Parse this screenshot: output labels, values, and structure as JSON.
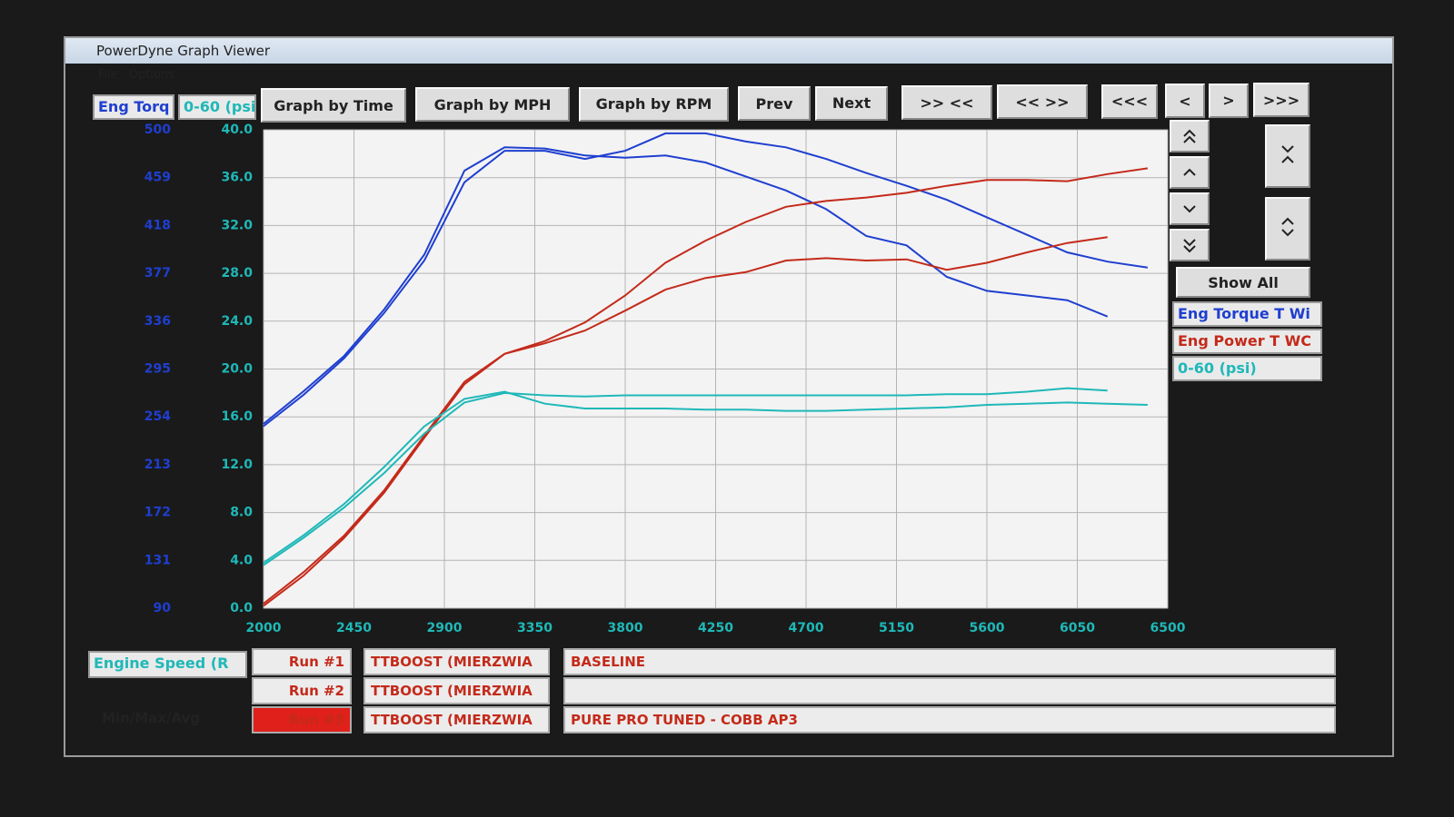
{
  "window": {
    "title": "PowerDyne Graph Viewer",
    "menu": [
      "File",
      "Options"
    ]
  },
  "toolbar": [
    "Graph by Time",
    "Graph by MPH",
    "Graph by RPM",
    "Prev",
    "Next",
    ">> <<",
    "<< >>",
    "<<<",
    "<",
    ">",
    ">>>"
  ],
  "show_all": "Show All",
  "chart_data": {
    "type": "line",
    "y_label": "Eng Torq",
    "y2_label": "0-60 (psi)",
    "x_label": "Engine Speed (R",
    "x": [
      2000,
      2200,
      2400,
      2600,
      2800,
      3000,
      3200,
      3400,
      3600,
      3800,
      4000,
      4200,
      4400,
      4600,
      4800,
      5000,
      5200,
      5400,
      5600,
      5800,
      6000,
      6200,
      6400
    ],
    "xlim": [
      2000,
      6500
    ],
    "xticks": [
      2000,
      2450,
      2900,
      3350,
      3800,
      4250,
      4700,
      5150,
      5600,
      6050,
      6500
    ],
    "ylim": [
      90,
      500
    ],
    "yticks": [
      90,
      131,
      172,
      213,
      254,
      295,
      336,
      377,
      418,
      459,
      500
    ],
    "y2lim": [
      0,
      40
    ],
    "y2ticks": [
      {
        "value": 0,
        "label": "0.0"
      },
      {
        "value": 4,
        "label": "4.0"
      },
      {
        "value": 8,
        "label": "8.0"
      },
      {
        "value": 12,
        "label": "12.0"
      },
      {
        "value": 16,
        "label": "16.0"
      },
      {
        "value": 20,
        "label": "20.0"
      },
      {
        "value": 24,
        "label": "24.0"
      },
      {
        "value": 28,
        "label": "28.0"
      },
      {
        "value": 32,
        "label": "32.0"
      },
      {
        "value": 36,
        "label": "36.0"
      },
      {
        "value": 40,
        "label": "40.0"
      }
    ],
    "grid": true,
    "series": [
      {
        "name": "Eng Torque T Wi",
        "color": "#1f3fd0",
        "runs": [
          [
            246,
            273,
            304,
            343,
            388,
            455,
            482,
            482,
            475,
            482,
            497,
            497,
            490,
            485,
            475,
            463,
            452,
            440,
            425,
            410,
            395,
            387,
            382
          ],
          [
            248,
            276,
            306,
            346,
            393,
            465,
            485,
            484,
            478,
            476,
            478,
            472,
            460,
            448,
            432,
            409,
            401,
            374,
            362,
            358,
            354,
            340,
            null
          ]
        ]
      },
      {
        "name": "Eng Power T WC",
        "color": "#c42a1a",
        "runs": [
          [
            94,
            121,
            152,
            191,
            238,
            284,
            308,
            319,
            335,
            358,
            386,
            405,
            421,
            434,
            439,
            442,
            446,
            452,
            457,
            457,
            456,
            462,
            467
          ],
          [
            92,
            118,
            150,
            189,
            236,
            282,
            308,
            317,
            328,
            345,
            363,
            373,
            378,
            388,
            390,
            388,
            389,
            380,
            386,
            395,
            403,
            408,
            null
          ]
        ]
      },
      {
        "name": "0-60 (psi)",
        "color": "#1fb8b8",
        "axis": "y2",
        "runs": [
          [
            3.8,
            6.1,
            8.7,
            11.8,
            15.2,
            17.5,
            18.1,
            17.1,
            16.7,
            16.7,
            16.7,
            16.6,
            16.6,
            16.5,
            16.5,
            16.6,
            16.7,
            16.8,
            17.0,
            17.1,
            17.2,
            17.1,
            17.0
          ],
          [
            3.6,
            5.9,
            8.4,
            11.3,
            14.6,
            17.2,
            18.0,
            17.8,
            17.7,
            17.8,
            17.8,
            17.8,
            17.8,
            17.8,
            17.8,
            17.8,
            17.8,
            17.9,
            17.9,
            18.1,
            18.4,
            18.2,
            null
          ]
        ]
      }
    ]
  },
  "runs": [
    {
      "label": "Run #1",
      "vehicle": "TTBOOST (MIERZWIA",
      "note": "BASELINE"
    },
    {
      "label": "Run #2",
      "vehicle": "TTBOOST (MIERZWIA",
      "note": ""
    },
    {
      "label": "Run #3",
      "vehicle": "TTBOOST (MIERZWIA",
      "note": "PURE PRO TUNED - COBB AP3"
    }
  ],
  "min_max_avg": "Min/Max/Avg"
}
